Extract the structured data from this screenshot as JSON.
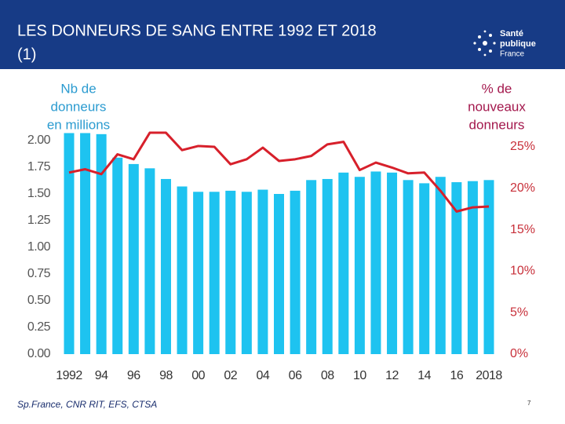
{
  "header": {
    "title_lines": [
      "LES DONNEURS DE SANG ENTRE 1992 ET 2018",
      "(1)"
    ],
    "logo": [
      "Santé",
      "publique",
      "France"
    ]
  },
  "chart_data": {
    "type": "bar",
    "categories": [
      "1992",
      null,
      "94",
      null,
      "96",
      null,
      "98",
      null,
      "00",
      null,
      "02",
      null,
      "04",
      null,
      "06",
      null,
      "08",
      null,
      "10",
      null,
      "12",
      null,
      "14",
      null,
      "16",
      null,
      "2018"
    ],
    "series": [
      {
        "type": "bar",
        "color": "#1ec3f0",
        "values": [
          2.07,
          2.07,
          2.06,
          1.84,
          1.78,
          1.74,
          1.64,
          1.57,
          1.52,
          1.52,
          1.53,
          1.52,
          1.54,
          1.5,
          1.53,
          1.63,
          1.64,
          1.7,
          1.66,
          1.71,
          1.7,
          1.63,
          1.6,
          1.66,
          1.61,
          1.62,
          1.63
        ]
      },
      {
        "type": "line",
        "axis": "y2",
        "color": "#d7202b",
        "values": [
          21.9,
          22.3,
          21.7,
          24.1,
          23.5,
          26.7,
          26.7,
          24.6,
          25.1,
          25.0,
          22.9,
          23.5,
          24.9,
          23.3,
          23.5,
          23.9,
          25.3,
          25.6,
          22.2,
          23.1,
          22.5,
          21.8,
          21.9,
          19.7,
          17.2,
          17.7,
          17.8
        ]
      }
    ],
    "ylabel": [
      "Nb de",
      "donneurs",
      "en millions"
    ],
    "y2label": [
      "% de",
      "nouveaux",
      "donneurs"
    ],
    "ylim": [
      0,
      2
    ],
    "yticks": [
      {
        "value": 0,
        "label": "0.00"
      },
      {
        "value": 0.25,
        "label": "0.25"
      },
      {
        "value": 0.5,
        "label": "0.50"
      },
      {
        "value": 0.75,
        "label": "0.75"
      },
      {
        "value": 1,
        "label": "1.00"
      },
      {
        "value": 1.25,
        "label": "1.25"
      },
      {
        "value": 1.5,
        "label": "1.50"
      },
      {
        "value": 1.75,
        "label": "1.75"
      },
      {
        "value": 2,
        "label": "2.00"
      }
    ],
    "y2lim": [
      0,
      25
    ],
    "y2ticks": [
      {
        "value": 0,
        "label": "0%"
      },
      {
        "value": 5,
        "label": "5%"
      },
      {
        "value": 10,
        "label": "10%"
      },
      {
        "value": 15,
        "label": "15%"
      },
      {
        "value": 20,
        "label": "20%"
      },
      {
        "value": 25,
        "label": "25%"
      }
    ],
    "grid": false
  },
  "footer": {
    "source": "Sp.France, CNR RIT,  EFS, CTSA",
    "page": "7"
  }
}
